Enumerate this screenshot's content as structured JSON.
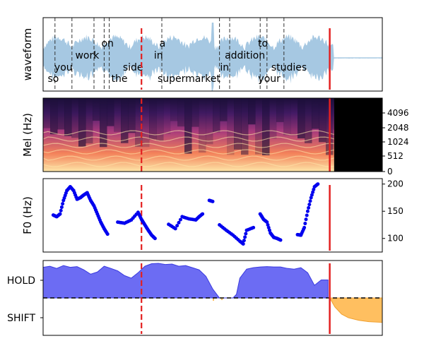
{
  "chart_data": [
    {
      "type": "line",
      "ylabel": "waveform",
      "words": [
        {
          "text": "so",
          "t": 0.03,
          "row": "low"
        },
        {
          "text": "you",
          "t": 0.06,
          "row": "mid"
        },
        {
          "text": "work",
          "t": 0.13,
          "row": "upper"
        },
        {
          "text": "on",
          "t": 0.19,
          "row": "top"
        },
        {
          "text": "the",
          "t": 0.225,
          "row": "low"
        },
        {
          "text": "side",
          "t": 0.265,
          "row": "mid"
        },
        {
          "text": "in",
          "t": 0.34,
          "row": "upper"
        },
        {
          "text": "a",
          "t": 0.352,
          "row": "top"
        },
        {
          "text": "supermarket",
          "t": 0.43,
          "row": "low"
        },
        {
          "text": "in",
          "t": 0.535,
          "row": "mid"
        },
        {
          "text": "addition",
          "t": 0.595,
          "row": "upper"
        },
        {
          "text": "to",
          "t": 0.648,
          "row": "top"
        },
        {
          "text": "your",
          "t": 0.667,
          "row": "low"
        },
        {
          "text": "studies",
          "t": 0.725,
          "row": "mid"
        }
      ],
      "word_boundaries": [
        0.035,
        0.085,
        0.15,
        0.18,
        0.195,
        0.35,
        0.52,
        0.55,
        0.64,
        0.66,
        0.71
      ],
      "red_dashed_t": 0.29,
      "red_solid_t": 0.845
    },
    {
      "type": "heatmap",
      "ylabel": "Mel (Hz)",
      "yticks": [
        "0",
        "512",
        "1024",
        "2048",
        "4096"
      ],
      "dark_from_t": 0.858
    },
    {
      "type": "scatter",
      "ylabel": "F0 (Hz)",
      "yticks": [
        100,
        150,
        200
      ],
      "ylim": [
        75,
        210
      ],
      "segments": [
        [
          [
            0.03,
            143
          ],
          [
            0.04,
            140
          ],
          [
            0.05,
            145
          ],
          [
            0.06,
            170
          ],
          [
            0.07,
            188
          ],
          [
            0.08,
            195
          ],
          [
            0.09,
            188
          ],
          [
            0.1,
            172
          ],
          [
            0.11,
            175
          ],
          [
            0.12,
            180
          ],
          [
            0.13,
            184
          ],
          [
            0.14,
            170
          ],
          [
            0.15,
            160
          ],
          [
            0.16,
            145
          ],
          [
            0.17,
            130
          ],
          [
            0.18,
            118
          ],
          [
            0.19,
            108
          ]
        ],
        [
          [
            0.22,
            130
          ],
          [
            0.24,
            128
          ],
          [
            0.26,
            134
          ],
          [
            0.28,
            148
          ],
          [
            0.29,
            135
          ],
          [
            0.3,
            125
          ],
          [
            0.31,
            115
          ],
          [
            0.32,
            106
          ],
          [
            0.33,
            100
          ]
        ],
        [
          [
            0.37,
            126
          ],
          [
            0.39,
            118
          ],
          [
            0.41,
            140
          ],
          [
            0.43,
            136
          ],
          [
            0.45,
            134
          ],
          [
            0.46,
            140
          ],
          [
            0.47,
            145
          ]
        ],
        [
          [
            0.49,
            170
          ],
          [
            0.5,
            168
          ]
        ],
        [
          [
            0.52,
            125
          ],
          [
            0.54,
            115
          ],
          [
            0.56,
            106
          ],
          [
            0.58,
            95
          ],
          [
            0.59,
            90
          ],
          [
            0.6,
            115
          ],
          [
            0.62,
            120
          ]
        ],
        [
          [
            0.64,
            145
          ],
          [
            0.65,
            135
          ],
          [
            0.66,
            130
          ],
          [
            0.67,
            110
          ],
          [
            0.68,
            102
          ],
          [
            0.69,
            100
          ],
          [
            0.7,
            97
          ]
        ],
        [
          [
            0.75,
            107
          ],
          [
            0.76,
            106
          ],
          [
            0.77,
            120
          ],
          [
            0.78,
            150
          ],
          [
            0.79,
            175
          ],
          [
            0.8,
            195
          ],
          [
            0.81,
            200
          ]
        ]
      ],
      "red_dashed_t": 0.29,
      "red_solid_t": 0.845
    },
    {
      "type": "area",
      "yticks": [
        "HOLD",
        "SHIFT"
      ],
      "hold_series": [
        [
          0,
          0.85
        ],
        [
          0.02,
          0.88
        ],
        [
          0.04,
          0.82
        ],
        [
          0.06,
          0.9
        ],
        [
          0.08,
          0.85
        ],
        [
          0.1,
          0.87
        ],
        [
          0.12,
          0.78
        ],
        [
          0.14,
          0.66
        ],
        [
          0.16,
          0.72
        ],
        [
          0.18,
          0.88
        ],
        [
          0.2,
          0.82
        ],
        [
          0.22,
          0.75
        ],
        [
          0.24,
          0.62
        ],
        [
          0.26,
          0.55
        ],
        [
          0.28,
          0.7
        ],
        [
          0.3,
          0.88
        ],
        [
          0.32,
          0.95
        ],
        [
          0.34,
          0.96
        ],
        [
          0.36,
          0.93
        ],
        [
          0.38,
          0.94
        ],
        [
          0.4,
          0.88
        ],
        [
          0.42,
          0.9
        ],
        [
          0.44,
          0.84
        ],
        [
          0.46,
          0.78
        ],
        [
          0.48,
          0.6
        ],
        [
          0.5,
          0.25
        ],
        [
          0.52,
          0.0
        ],
        [
          0.54,
          0.0
        ],
        [
          0.56,
          0.0
        ],
        [
          0.57,
          0.1
        ],
        [
          0.58,
          0.55
        ],
        [
          0.6,
          0.8
        ],
        [
          0.62,
          0.84
        ],
        [
          0.64,
          0.86
        ],
        [
          0.66,
          0.87
        ],
        [
          0.68,
          0.86
        ],
        [
          0.7,
          0.86
        ],
        [
          0.72,
          0.82
        ],
        [
          0.74,
          0.8
        ],
        [
          0.76,
          0.84
        ],
        [
          0.78,
          0.7
        ],
        [
          0.8,
          0.35
        ],
        [
          0.82,
          0.5
        ],
        [
          0.84,
          0.5
        ]
      ],
      "shift_series": [
        [
          0.845,
          0.0
        ],
        [
          0.86,
          0.25
        ],
        [
          0.88,
          0.45
        ],
        [
          0.9,
          0.55
        ],
        [
          0.93,
          0.62
        ],
        [
          0.96,
          0.66
        ],
        [
          1.0,
          0.68
        ]
      ],
      "hold_color": "#5c5cf2",
      "shift_color": "#ffbf60",
      "red_dashed_t": 0.29,
      "red_solid_t": 0.845
    }
  ]
}
